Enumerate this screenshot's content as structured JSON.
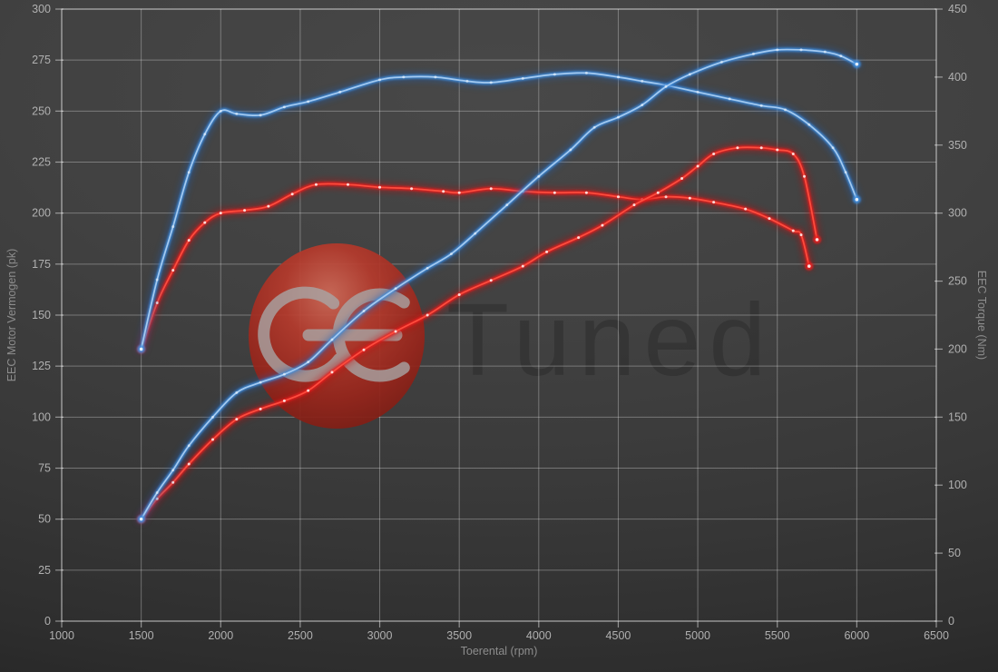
{
  "watermark": {
    "primary": "GE",
    "secondary": "Tuned",
    "ball_color": "#a92c22"
  },
  "style": {
    "background": "#3b3b3b",
    "grid_color": "rgba(255,255,255,0.30)",
    "border_color": "rgba(255,255,255,0.48)",
    "tick_text_color": "#b0b0b0",
    "axis_title_color": "#8d8d8d",
    "blue": {
      "glow": "#1a5fb8",
      "mid": "#3f8ede",
      "core": "#aacdf2"
    },
    "red": {
      "glow": "#c40f0f",
      "mid": "#e81e1e",
      "core": "#ff5040"
    }
  },
  "chart_data": {
    "type": "line",
    "grid": true,
    "legend": false,
    "x_axis": {
      "label": "Toerental (rpm)",
      "min": 1000,
      "max": 6500,
      "tick_step": 500,
      "ticks": [
        1000,
        1500,
        2000,
        2500,
        3000,
        3500,
        4000,
        4500,
        5000,
        5500,
        6000,
        6500
      ]
    },
    "y_axis_left": {
      "label": "EEC Motor Vermogen (pk)",
      "min": 0,
      "max": 300,
      "tick_step": 25,
      "ticks": [
        0,
        25,
        50,
        75,
        100,
        125,
        150,
        175,
        200,
        225,
        250,
        275,
        300
      ]
    },
    "y_axis_right": {
      "label": "EEC Torque (Nm)",
      "min": 0,
      "max": 450,
      "tick_step": 50,
      "ticks": [
        0,
        50,
        100,
        150,
        200,
        250,
        300,
        350,
        400,
        450
      ]
    },
    "series": [
      {
        "id": "red-torque",
        "color_key": "red",
        "axis": "right",
        "unit": "Nm",
        "points": [
          [
            1500,
            200
          ],
          [
            1600,
            234
          ],
          [
            1700,
            258
          ],
          [
            1800,
            280
          ],
          [
            1900,
            293
          ],
          [
            2000,
            300
          ],
          [
            2150,
            302
          ],
          [
            2300,
            305
          ],
          [
            2450,
            314
          ],
          [
            2600,
            321
          ],
          [
            2800,
            321
          ],
          [
            3000,
            319
          ],
          [
            3200,
            318
          ],
          [
            3400,
            316
          ],
          [
            3500,
            315
          ],
          [
            3700,
            318
          ],
          [
            3900,
            316
          ],
          [
            4100,
            315
          ],
          [
            4300,
            315
          ],
          [
            4500,
            312
          ],
          [
            4650,
            310
          ],
          [
            4800,
            312
          ],
          [
            4950,
            311
          ],
          [
            5100,
            308
          ],
          [
            5300,
            303
          ],
          [
            5450,
            296
          ],
          [
            5600,
            287
          ],
          [
            5650,
            284
          ],
          [
            5700,
            261
          ]
        ]
      },
      {
        "id": "red-power",
        "color_key": "red",
        "axis": "left",
        "unit": "pk",
        "points": [
          [
            1500,
            50
          ],
          [
            1600,
            60
          ],
          [
            1700,
            68
          ],
          [
            1800,
            77
          ],
          [
            1950,
            89
          ],
          [
            2100,
            99
          ],
          [
            2250,
            104
          ],
          [
            2400,
            108
          ],
          [
            2550,
            113
          ],
          [
            2700,
            122
          ],
          [
            2900,
            133
          ],
          [
            3100,
            142
          ],
          [
            3300,
            150
          ],
          [
            3500,
            160
          ],
          [
            3700,
            167
          ],
          [
            3900,
            174
          ],
          [
            4050,
            181
          ],
          [
            4250,
            188
          ],
          [
            4400,
            194
          ],
          [
            4600,
            204
          ],
          [
            4750,
            210
          ],
          [
            4900,
            217
          ],
          [
            5000,
            223
          ],
          [
            5100,
            229
          ],
          [
            5250,
            232
          ],
          [
            5400,
            232
          ],
          [
            5500,
            231
          ],
          [
            5600,
            229
          ],
          [
            5670,
            218
          ],
          [
            5750,
            187
          ]
        ]
      },
      {
        "id": "blue-torque",
        "color_key": "blue",
        "axis": "right",
        "unit": "Nm",
        "points": [
          [
            1500,
            200
          ],
          [
            1600,
            251
          ],
          [
            1700,
            290
          ],
          [
            1800,
            330
          ],
          [
            1900,
            358
          ],
          [
            2000,
            375
          ],
          [
            2100,
            373
          ],
          [
            2250,
            372
          ],
          [
            2400,
            378
          ],
          [
            2550,
            382
          ],
          [
            2750,
            389
          ],
          [
            3000,
            398
          ],
          [
            3150,
            400
          ],
          [
            3350,
            400
          ],
          [
            3550,
            397
          ],
          [
            3700,
            396
          ],
          [
            3900,
            399
          ],
          [
            4100,
            402
          ],
          [
            4300,
            403
          ],
          [
            4500,
            400
          ],
          [
            4650,
            397
          ],
          [
            4800,
            394
          ],
          [
            5000,
            389
          ],
          [
            5200,
            384
          ],
          [
            5400,
            379
          ],
          [
            5550,
            376
          ],
          [
            5700,
            365
          ],
          [
            5850,
            348
          ],
          [
            5930,
            330
          ],
          [
            6000,
            310
          ]
        ]
      },
      {
        "id": "blue-power",
        "color_key": "blue",
        "axis": "left",
        "unit": "pk",
        "points": [
          [
            1500,
            50
          ],
          [
            1600,
            63
          ],
          [
            1700,
            74
          ],
          [
            1800,
            86
          ],
          [
            1950,
            100
          ],
          [
            2100,
            112
          ],
          [
            2250,
            117
          ],
          [
            2400,
            121
          ],
          [
            2550,
            127
          ],
          [
            2700,
            138
          ],
          [
            2900,
            152
          ],
          [
            3100,
            163
          ],
          [
            3300,
            173
          ],
          [
            3450,
            180
          ],
          [
            3600,
            190
          ],
          [
            3800,
            204
          ],
          [
            4000,
            218
          ],
          [
            4200,
            231
          ],
          [
            4350,
            242
          ],
          [
            4500,
            247
          ],
          [
            4650,
            253
          ],
          [
            4800,
            262
          ],
          [
            4950,
            268
          ],
          [
            5150,
            274
          ],
          [
            5350,
            278
          ],
          [
            5500,
            280
          ],
          [
            5650,
            280
          ],
          [
            5800,
            279
          ],
          [
            5900,
            277
          ],
          [
            6000,
            273
          ]
        ]
      }
    ]
  }
}
